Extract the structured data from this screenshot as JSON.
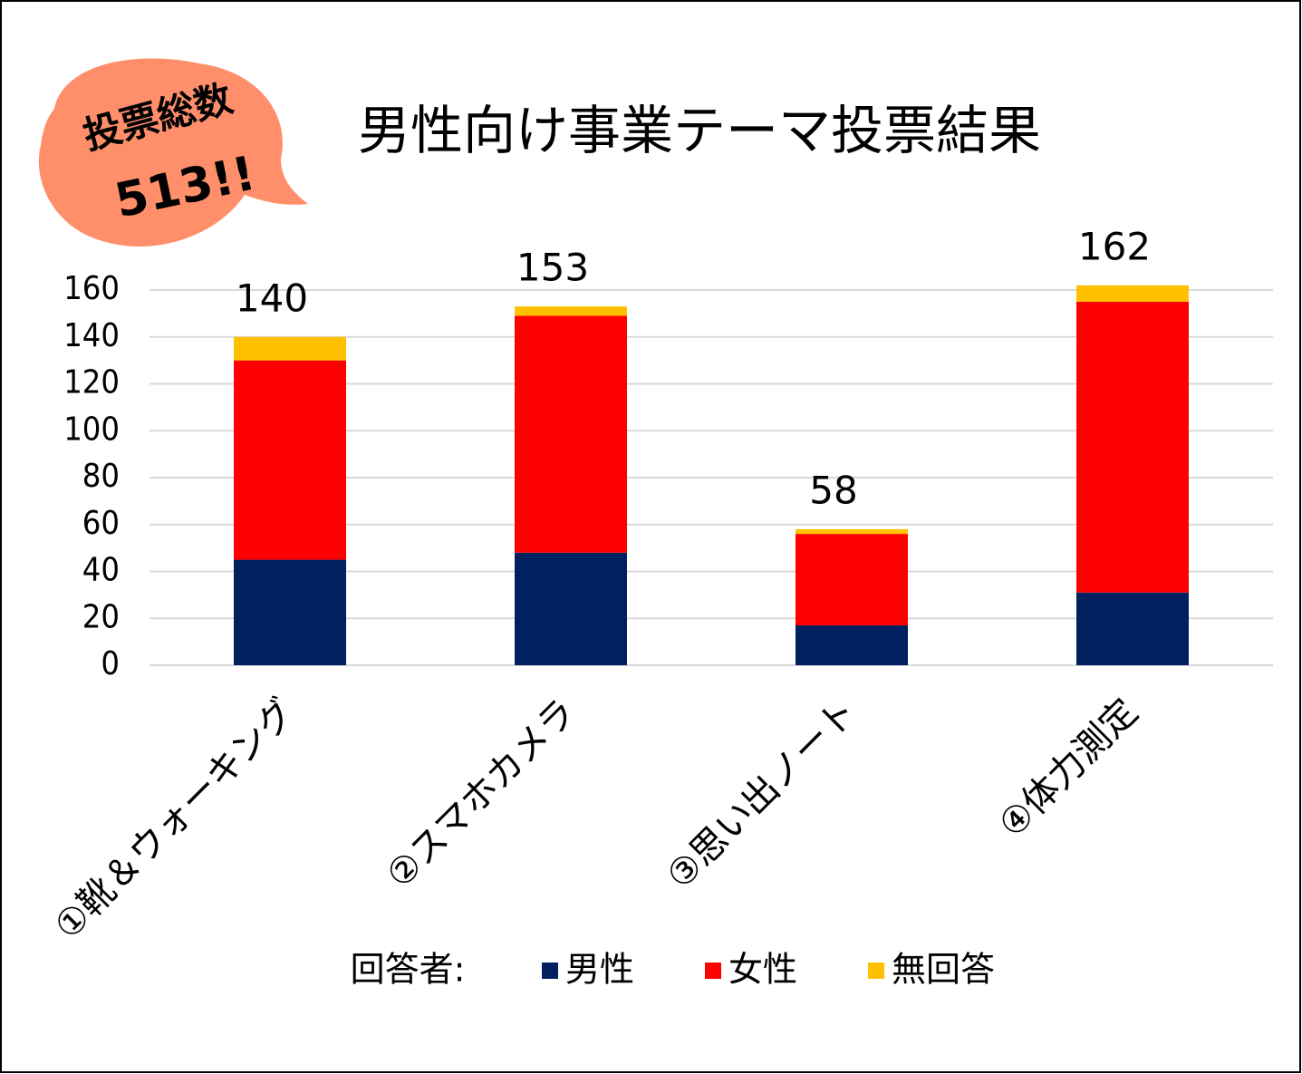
{
  "chart_data": {
    "type": "stacked_bar",
    "title": "男性向け事業テーマ投票結果",
    "annotation": {
      "label": "投票総数",
      "total": "513!!"
    },
    "categories": [
      "①靴＆ウォーキング",
      "②スマホカメラ",
      "③思い出ノート",
      "④体力測定"
    ],
    "series": [
      {
        "name": "男性",
        "color": "#002060",
        "values": [
          45,
          48,
          17,
          31
        ]
      },
      {
        "name": "女性",
        "color": "#ff0000",
        "values": [
          85,
          101,
          39,
          124
        ]
      },
      {
        "name": "無回答",
        "color": "#ffc000",
        "values": [
          10,
          4,
          2,
          7
        ]
      }
    ],
    "totals": [
      140,
      153,
      58,
      162
    ],
    "legend_title": "回答者:",
    "ylim": [
      0,
      160
    ],
    "yticks": [
      0,
      20,
      40,
      60,
      80,
      100,
      120,
      140,
      160
    ],
    "grid": true
  }
}
